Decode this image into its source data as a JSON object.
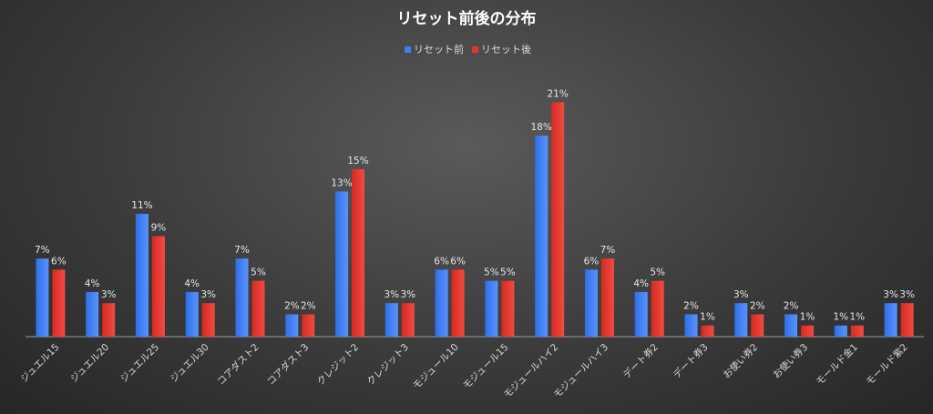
{
  "chart_data": {
    "type": "bar",
    "title": "リセット前後の分布",
    "legend_position": "top",
    "grid": false,
    "ylim": [
      0,
      22
    ],
    "categories": [
      "ジュエル15",
      "ジュエル20",
      "ジュエル25",
      "ジュエル30",
      "コアダスト2",
      "コアダスト3",
      "クレジット2",
      "クレジット3",
      "モジュール10",
      "モジュール15",
      "モジュールハイ2",
      "モジュールハイ3",
      "デート券2",
      "デート券3",
      "お使い券2",
      "お使い券3",
      "モールド金1",
      "モールド紫2"
    ],
    "series": [
      {
        "name": "リセット前",
        "color": "#3d7ef0",
        "values": [
          7,
          4,
          11,
          4,
          7,
          2,
          13,
          3,
          6,
          5,
          18,
          6,
          4,
          2,
          3,
          2,
          1,
          3
        ],
        "labels": [
          "7%",
          "4%",
          "11%",
          "4%",
          "7%",
          "2%",
          "13%",
          "3%",
          "6%",
          "5%",
          "18%",
          "6%",
          "4%",
          "2%",
          "3%",
          "2%",
          "1%",
          "3%"
        ]
      },
      {
        "name": "リセット後",
        "color": "#e5342b",
        "values": [
          6,
          3,
          9,
          3,
          5,
          2,
          15,
          3,
          6,
          5,
          21,
          7,
          5,
          1,
          2,
          1,
          1,
          3
        ],
        "labels": [
          "6%",
          "3%",
          "9%",
          "3%",
          "5%",
          "2%",
          "15%",
          "3%",
          "6%",
          "5%",
          "21%",
          "7%",
          "5%",
          "1%",
          "2%",
          "1%",
          "1%",
          "3%"
        ]
      }
    ]
  }
}
